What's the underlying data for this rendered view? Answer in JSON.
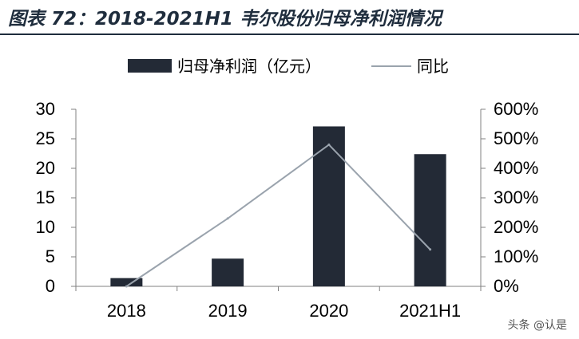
{
  "title": "图表 72：2018-2021H1 韦尔股份归母净利润情况",
  "watermark": "头条 @认是",
  "colors": {
    "bar": "#232a36",
    "line": "#9aa3ad",
    "title": "#1f2d3d"
  },
  "chart_data": {
    "type": "bar",
    "categories": [
      "2018",
      "2019",
      "2020",
      "2021H1"
    ],
    "series": [
      {
        "name": "归母净利润（亿元）",
        "type": "bar",
        "axis": "left",
        "values": [
          1.4,
          4.7,
          27.1,
          22.4
        ]
      },
      {
        "name": "同比",
        "type": "line",
        "axis": "right",
        "values": [
          0.0,
          2.3,
          4.8,
          1.25
        ]
      }
    ],
    "y_left": {
      "min": 0,
      "max": 30,
      "ticks": [
        "0",
        "5",
        "10",
        "15",
        "20",
        "25",
        "30"
      ]
    },
    "y_right": {
      "min": 0,
      "max": 6,
      "ticks": [
        "0%",
        "100%",
        "200%",
        "300%",
        "400%",
        "500%",
        "600%"
      ]
    },
    "grid": false,
    "legend_position": "top"
  }
}
